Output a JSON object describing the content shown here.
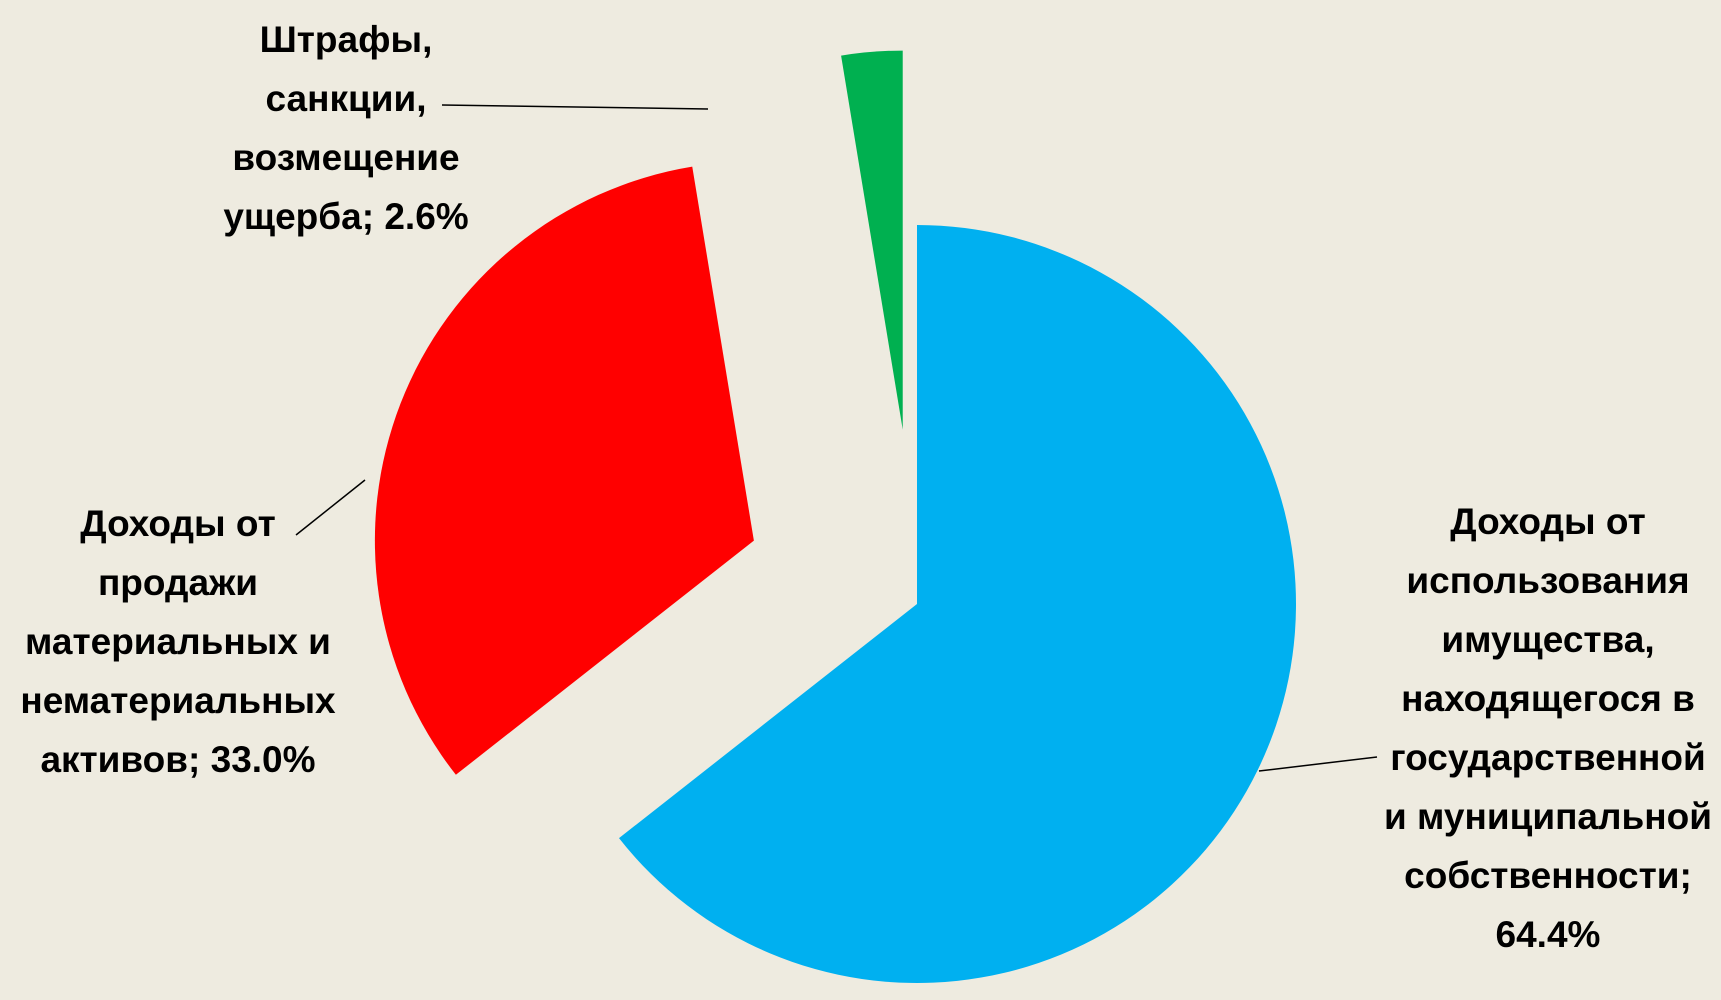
{
  "chart_data": {
    "type": "pie",
    "categories": [
      "Доходы от использования имущества, находящегося в государственной и муниципальной собственности",
      "Доходы от продажи материальных и нематериальных активов",
      "Штрафы, санкции, возмещение ущерба"
    ],
    "values": [
      64.4,
      33.0,
      2.6
    ],
    "value_labels": [
      "64.4%",
      "33.0%",
      "2.6%"
    ],
    "label_separator": "; ",
    "colors": [
      "#00B0F0",
      "#FF0000",
      "#00B050"
    ]
  }
}
